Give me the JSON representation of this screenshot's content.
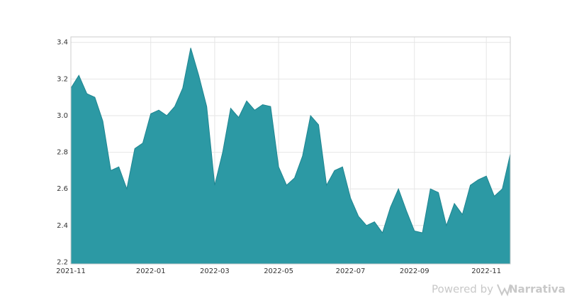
{
  "chart_data": {
    "type": "area",
    "categories": [
      "2021-11",
      null,
      null,
      null,
      null,
      null,
      null,
      null,
      null,
      null,
      "2022-01",
      null,
      null,
      null,
      null,
      null,
      null,
      null,
      "2022-03",
      null,
      null,
      null,
      null,
      null,
      null,
      null,
      "2022-05",
      null,
      null,
      null,
      null,
      null,
      null,
      null,
      null,
      "2022-07",
      null,
      null,
      null,
      null,
      null,
      null,
      null,
      "2022-09",
      null,
      null,
      null,
      null,
      null,
      null,
      null,
      null,
      "2022-11",
      null,
      null,
      null
    ],
    "values": [
      3.15,
      3.22,
      3.12,
      3.1,
      2.97,
      2.7,
      2.72,
      2.6,
      2.82,
      2.85,
      3.01,
      3.03,
      3.0,
      3.05,
      3.15,
      3.37,
      3.22,
      3.05,
      2.62,
      2.8,
      3.04,
      2.99,
      3.08,
      3.03,
      3.06,
      3.05,
      2.72,
      2.62,
      2.66,
      2.78,
      3.0,
      2.95,
      2.62,
      2.7,
      2.72,
      2.55,
      2.45,
      2.4,
      2.42,
      2.36,
      2.5,
      2.6,
      2.48,
      2.37,
      2.36,
      2.6,
      2.58,
      2.4,
      2.52,
      2.46,
      2.62,
      2.65,
      2.67,
      2.56,
      2.6,
      2.79
    ],
    "color": "#2c99a4",
    "ylim": [
      2.19,
      3.43
    ],
    "yticks": [
      2.2,
      2.4,
      2.6,
      2.8,
      {
        "value": 3,
        "label": "3.0"
      },
      3.2,
      3.4
    ],
    "grid": true
  },
  "footer": {
    "prefix": "Powered by",
    "brand": "Narrativa"
  }
}
